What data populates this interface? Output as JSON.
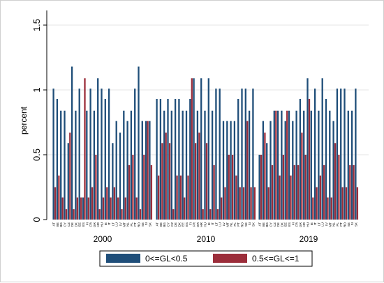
{
  "chart_data": {
    "type": "bar",
    "ylabel": "percent",
    "ylim": [
      0,
      1.6
    ],
    "yticks": [
      {
        "v": 0,
        "label": "0"
      },
      {
        "v": 0.5,
        "label": "0.5"
      },
      {
        "v": 1,
        "label": "1"
      },
      {
        "v": 1.5,
        "label": "1.5"
      }
    ],
    "grid": false,
    "legend_position": "bottom",
    "colors": {
      "series1": "#1f4e79",
      "series2": "#9b2d3a",
      "grid": "#e6e6e6",
      "axis": "#000000"
    },
    "groups": [
      {
        "label": "2000",
        "categories": [
          "AT",
          "BE",
          "BG",
          "CY",
          "CZ",
          "DE",
          "DK",
          "EE",
          "ES",
          "FI",
          "FR",
          "GR",
          "HR",
          "HU",
          "IE",
          "IT",
          "LT",
          "LU",
          "LV",
          "MT",
          "NL",
          "PL",
          "PT",
          "RO",
          "SE",
          "SI",
          "SK"
        ],
        "series1": [
          1.01,
          0.93,
          0.84,
          0.84,
          0.59,
          1.18,
          0.84,
          1.01,
          0.17,
          0.84,
          1.01,
          0.84,
          1.09,
          1.01,
          0.93,
          1.01,
          0.59,
          0.76,
          0.67,
          0.84,
          0.76,
          0.84,
          1.01,
          1.18,
          0.76,
          0.76,
          0.76
        ],
        "series2": [
          0.25,
          0.34,
          0.17,
          0.08,
          0.67,
          0.08,
          0.17,
          0.17,
          1.09,
          0.17,
          0.25,
          0.5,
          0.08,
          0.17,
          0.25,
          0.17,
          0.25,
          0.17,
          0.08,
          0.17,
          0.42,
          0.5,
          0.17,
          0.08,
          0.5,
          0.76,
          0.42
        ]
      },
      {
        "label": "2010",
        "categories": [
          "AT",
          "BE",
          "BG",
          "CY",
          "CZ",
          "DE",
          "DK",
          "EE",
          "ES",
          "FI",
          "FR",
          "GR",
          "HR",
          "HU",
          "IE",
          "IT",
          "LT",
          "LU",
          "LV",
          "MT",
          "NL",
          "PL",
          "PT",
          "RO",
          "SE",
          "SI",
          "SK"
        ],
        "series1": [
          0.93,
          0.93,
          0.84,
          0.93,
          0.84,
          0.93,
          0.93,
          0.84,
          0.84,
          0.93,
          1.09,
          0.84,
          1.09,
          0.84,
          1.09,
          0.84,
          1.01,
          1.01,
          0.76,
          0.76,
          0.76,
          0.76,
          0.93,
          1.01,
          1.01,
          0.84,
          1.01
        ],
        "series2": [
          0.34,
          0.59,
          0.67,
          0.59,
          0.08,
          0.34,
          0.34,
          0.17,
          0.34,
          1.09,
          0.59,
          0.67,
          0.08,
          0.59,
          0.08,
          0.42,
          0.08,
          0.17,
          0.25,
          0.5,
          0.5,
          0.34,
          0.25,
          0.25,
          0.76,
          0.25,
          0.25
        ]
      },
      {
        "label": "2019",
        "categories": [
          "AT",
          "BE",
          "BG",
          "CY",
          "CZ",
          "DE",
          "DK",
          "EE",
          "ES",
          "FI",
          "FR",
          "GR",
          "HR",
          "HU",
          "IE",
          "IT",
          "LT",
          "LU",
          "LV",
          "MT",
          "NL",
          "PL",
          "PT",
          "RO",
          "SE",
          "SI",
          "SK"
        ],
        "series1": [
          0.5,
          0.76,
          0.59,
          0.76,
          0.84,
          0.84,
          0.84,
          0.76,
          0.84,
          0.76,
          0.84,
          0.93,
          0.84,
          1.09,
          0.84,
          1.01,
          0.84,
          1.09,
          0.93,
          0.84,
          0.76,
          1.01,
          1.01,
          1.01,
          0.84,
          0.84,
          1.01
        ],
        "series2": [
          0.5,
          0.67,
          0.25,
          0.42,
          0.84,
          0.34,
          0.5,
          0.84,
          0.34,
          0.42,
          0.42,
          0.67,
          0.5,
          0.93,
          0.17,
          0.25,
          0.34,
          0.42,
          0.17,
          0.17,
          0.59,
          0.5,
          0.25,
          0.25,
          0.42,
          0.42,
          0.25
        ]
      }
    ],
    "series": [
      {
        "name": "0<=GL<0.5"
      },
      {
        "name": "0.5<=GL<=1"
      }
    ]
  }
}
